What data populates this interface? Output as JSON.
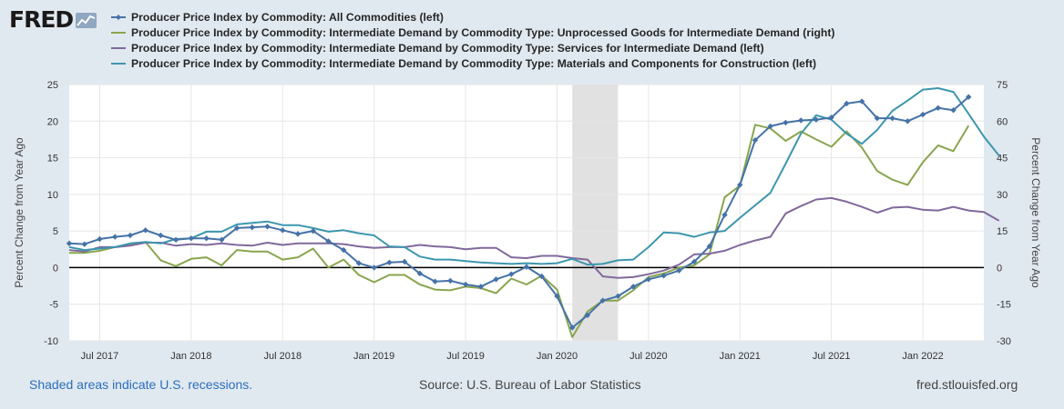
{
  "brand": {
    "name": "FRED",
    "icon": "trend-graph-icon"
  },
  "footer": {
    "recession_note": "Shaded areas indicate U.S. recessions.",
    "source": "Source: U.S. Bureau of Labor Statistics",
    "site": "fred.stlouisfed.org"
  },
  "colors": {
    "background": "#e1e9f0",
    "plot_background": "#ffffff",
    "recession": "#e1e1e1",
    "zero_line": "#000000",
    "link": "#2a6ebb"
  },
  "chart_data": {
    "type": "line",
    "ylabel_left": "Percent Change from Year Ago",
    "ylabel_right": "Percent Change from Year Ago",
    "ylim_left": [
      -10,
      25
    ],
    "ylim_right": [
      -30,
      75
    ],
    "yticks_left": [
      -10,
      -5,
      0,
      5,
      10,
      15,
      20,
      25
    ],
    "yticks_right": [
      -30,
      -15,
      0,
      15,
      30,
      45,
      60,
      75
    ],
    "x_start": "2017-05",
    "x_end": "2022-05",
    "xticks": [
      {
        "date": "2017-07",
        "label": "Jul 2017"
      },
      {
        "date": "2018-01",
        "label": "Jan 2018"
      },
      {
        "date": "2018-07",
        "label": "Jul 2018"
      },
      {
        "date": "2019-01",
        "label": "Jan 2019"
      },
      {
        "date": "2019-07",
        "label": "Jul 2019"
      },
      {
        "date": "2020-01",
        "label": "Jan 2020"
      },
      {
        "date": "2020-07",
        "label": "Jul 2020"
      },
      {
        "date": "2021-01",
        "label": "Jan 2021"
      },
      {
        "date": "2021-07",
        "label": "Jul 2021"
      },
      {
        "date": "2022-01",
        "label": "Jan 2022"
      }
    ],
    "recession": {
      "start": "2020-02",
      "end": "2020-04"
    },
    "grid": true,
    "legend_position": "top",
    "series": [
      {
        "name": "Producer Price Index by Commodity: All Commodities (left)",
        "axis": "left",
        "color": "#4572a7",
        "markers": true,
        "start": "2017-05",
        "values": [
          3.3,
          3.2,
          3.9,
          4.2,
          4.4,
          5.1,
          4.4,
          3.8,
          4.0,
          4.0,
          3.8,
          5.4,
          5.5,
          5.6,
          5.1,
          4.6,
          5.0,
          3.6,
          2.4,
          0.6,
          0.0,
          0.7,
          0.8,
          -0.8,
          -1.9,
          -1.8,
          -2.3,
          -2.6,
          -1.6,
          -0.9,
          0.1,
          -1.2,
          -3.9,
          -8.2,
          -6.5,
          -4.5,
          -3.9,
          -2.6,
          -1.6,
          -1.1,
          -0.4,
          0.8,
          2.9,
          7.2,
          11.3,
          17.4,
          19.3,
          19.8,
          20.1,
          20.2,
          20.5,
          22.4,
          22.7,
          20.4,
          20.4,
          20.0,
          20.9,
          21.8,
          21.5,
          23.3
        ]
      },
      {
        "name": "Producer Price Index by Commodity: Intermediate Demand by Commodity Type: Unprocessed Goods for Intermediate Demand (right)",
        "axis": "right",
        "color": "#89a54e",
        "markers": false,
        "start": "2017-05",
        "values": [
          6.0,
          6.0,
          6.9,
          8.4,
          9.2,
          10.5,
          3.0,
          0.6,
          3.6,
          4.2,
          0.9,
          7.2,
          6.6,
          6.6,
          3.3,
          4.2,
          7.8,
          0.0,
          3.3,
          -3.0,
          -6.0,
          -3.0,
          -3.0,
          -6.9,
          -9.0,
          -9.3,
          -7.8,
          -8.4,
          -10.5,
          -4.5,
          -6.9,
          -3.3,
          -9.0,
          -28.5,
          -18.0,
          -13.5,
          -13.5,
          -9.3,
          -3.9,
          -2.4,
          0.0,
          0.9,
          5.4,
          28.8,
          33.6,
          58.5,
          57.0,
          51.9,
          55.8,
          52.5,
          49.5,
          55.8,
          49.2,
          39.6,
          36.0,
          33.9,
          43.2,
          50.1,
          47.7,
          58.2
        ]
      },
      {
        "name": "Producer Price Index by Commodity: Intermediate Demand by Commodity Type: Services for Intermediate Demand (left)",
        "axis": "left",
        "color": "#80699b",
        "markers": false,
        "start": "2017-05",
        "values": [
          2.4,
          2.2,
          2.8,
          2.8,
          3.0,
          3.4,
          3.4,
          3.0,
          3.2,
          3.1,
          3.3,
          3.1,
          3.0,
          3.4,
          3.1,
          3.3,
          3.3,
          3.3,
          3.2,
          2.9,
          2.7,
          2.8,
          2.8,
          3.1,
          2.9,
          2.8,
          2.5,
          2.7,
          2.7,
          1.4,
          1.3,
          1.6,
          1.6,
          1.3,
          1.1,
          -1.2,
          -1.4,
          -1.3,
          -0.9,
          -0.4,
          0.4,
          1.8,
          1.9,
          2.3,
          3.1,
          3.7,
          4.2,
          7.4,
          8.4,
          9.3,
          9.5,
          9.0,
          8.3,
          7.5,
          8.2,
          8.3,
          7.9,
          7.8,
          8.3,
          7.8,
          7.6,
          6.4
        ]
      },
      {
        "name": "Producer Price Index by Commodity: Intermediate Demand by Commodity Type: Materials and Components for Construction (left)",
        "axis": "left",
        "color": "#3d96ae",
        "markers": false,
        "start": "2017-05",
        "values": [
          2.8,
          2.4,
          2.6,
          2.8,
          3.3,
          3.5,
          3.3,
          3.9,
          4.0,
          4.9,
          4.9,
          5.9,
          6.1,
          6.3,
          5.8,
          5.8,
          5.4,
          4.9,
          5.1,
          4.7,
          4.4,
          2.9,
          2.8,
          1.5,
          1.1,
          1.1,
          0.9,
          0.7,
          0.6,
          0.5,
          0.6,
          0.5,
          0.6,
          1.2,
          0.4,
          0.5,
          1.0,
          1.1,
          2.8,
          4.8,
          4.7,
          4.2,
          4.8,
          5.0,
          6.8,
          8.5,
          10.2,
          14.2,
          18.3,
          20.8,
          20.2,
          18.3,
          16.9,
          18.8,
          21.4,
          22.8,
          24.3,
          24.5,
          24.0,
          21.0,
          17.9,
          15.3
        ]
      }
    ]
  }
}
